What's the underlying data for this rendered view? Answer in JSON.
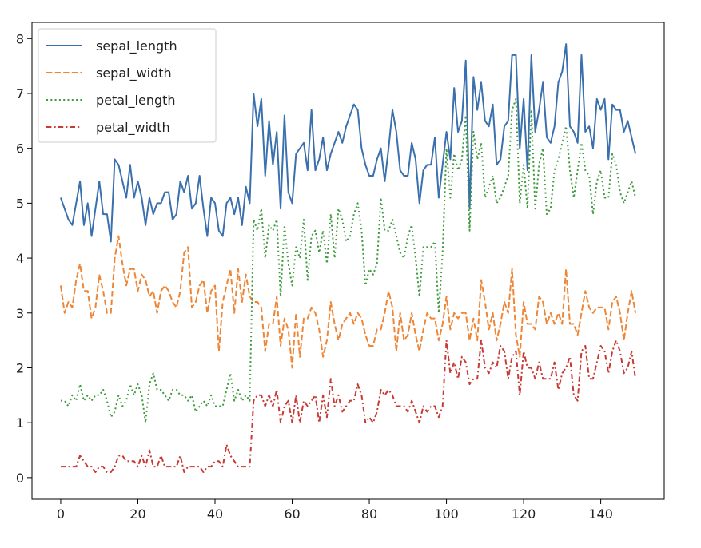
{
  "chart_data": {
    "type": "line",
    "title": "",
    "xlabel": "",
    "ylabel": "",
    "xlim": [
      -7.45,
      156.45
    ],
    "ylim": [
      -0.395,
      8.295
    ],
    "xticks": [
      0,
      20,
      40,
      60,
      80,
      100,
      120,
      140
    ],
    "yticks": [
      0,
      1,
      2,
      3,
      4,
      5,
      6,
      7,
      8
    ],
    "grid": false,
    "legend_position": "top-left",
    "series": [
      {
        "name": "sepal_length",
        "color": "#3a70ad",
        "dash": "solid",
        "x": [
          0,
          1,
          2,
          3,
          4,
          5,
          6,
          7,
          8,
          9,
          10,
          11,
          12,
          13,
          14,
          15,
          16,
          17,
          18,
          19,
          20,
          21,
          22,
          23,
          24,
          25,
          26,
          27,
          28,
          29,
          30,
          31,
          32,
          33,
          34,
          35,
          36,
          37,
          38,
          39,
          40,
          41,
          42,
          43,
          44,
          45,
          46,
          47,
          48,
          49,
          50,
          51,
          52,
          53,
          54,
          55,
          56,
          57,
          58,
          59,
          60,
          61,
          62,
          63,
          64,
          65,
          66,
          67,
          68,
          69,
          70,
          71,
          72,
          73,
          74,
          75,
          76,
          77,
          78,
          79,
          80,
          81,
          82,
          83,
          84,
          85,
          86,
          87,
          88,
          89,
          90,
          91,
          92,
          93,
          94,
          95,
          96,
          97,
          98,
          99,
          100,
          101,
          102,
          103,
          104,
          105,
          106,
          107,
          108,
          109,
          110,
          111,
          112,
          113,
          114,
          115,
          116,
          117,
          118,
          119,
          120,
          121,
          122,
          123,
          124,
          125,
          126,
          127,
          128,
          129,
          130,
          131,
          132,
          133,
          134,
          135,
          136,
          137,
          138,
          139,
          140,
          141,
          142,
          143,
          144,
          145,
          146,
          147,
          148,
          149
        ],
        "values": [
          5.1,
          4.9,
          4.7,
          4.6,
          5.0,
          5.4,
          4.6,
          5.0,
          4.4,
          4.9,
          5.4,
          4.8,
          4.8,
          4.3,
          5.8,
          5.7,
          5.4,
          5.1,
          5.7,
          5.1,
          5.4,
          5.1,
          4.6,
          5.1,
          4.8,
          5.0,
          5.0,
          5.2,
          5.2,
          4.7,
          4.8,
          5.4,
          5.2,
          5.5,
          4.9,
          5.0,
          5.5,
          4.9,
          4.4,
          5.1,
          5.0,
          4.5,
          4.4,
          5.0,
          5.1,
          4.8,
          5.1,
          4.6,
          5.3,
          5.0,
          7.0,
          6.4,
          6.9,
          5.5,
          6.5,
          5.7,
          6.3,
          4.9,
          6.6,
          5.2,
          5.0,
          5.9,
          6.0,
          6.1,
          5.6,
          6.7,
          5.6,
          5.8,
          6.2,
          5.6,
          5.9,
          6.1,
          6.3,
          6.1,
          6.4,
          6.6,
          6.8,
          6.7,
          6.0,
          5.7,
          5.5,
          5.5,
          5.8,
          6.0,
          5.4,
          6.0,
          6.7,
          6.3,
          5.6,
          5.5,
          5.5,
          6.1,
          5.8,
          5.0,
          5.6,
          5.7,
          5.7,
          6.2,
          5.1,
          5.7,
          6.3,
          5.8,
          7.1,
          6.3,
          6.5,
          7.6,
          4.9,
          7.3,
          6.7,
          7.2,
          6.5,
          6.4,
          6.8,
          5.7,
          5.8,
          6.4,
          6.5,
          7.7,
          7.7,
          6.0,
          6.9,
          5.6,
          7.7,
          6.3,
          6.7,
          7.2,
          6.2,
          6.1,
          6.4,
          7.2,
          7.4,
          7.9,
          6.4,
          6.3,
          6.1,
          7.7,
          6.3,
          6.4,
          6.0,
          6.9,
          6.7,
          6.9,
          5.8,
          6.8,
          6.7,
          6.7,
          6.3,
          6.5,
          6.2,
          5.9
        ]
      },
      {
        "name": "sepal_width",
        "color": "#ef8636",
        "dash": "dashed",
        "x": [
          0,
          1,
          2,
          3,
          4,
          5,
          6,
          7,
          8,
          9,
          10,
          11,
          12,
          13,
          14,
          15,
          16,
          17,
          18,
          19,
          20,
          21,
          22,
          23,
          24,
          25,
          26,
          27,
          28,
          29,
          30,
          31,
          32,
          33,
          34,
          35,
          36,
          37,
          38,
          39,
          40,
          41,
          42,
          43,
          44,
          45,
          46,
          47,
          48,
          49,
          50,
          51,
          52,
          53,
          54,
          55,
          56,
          57,
          58,
          59,
          60,
          61,
          62,
          63,
          64,
          65,
          66,
          67,
          68,
          69,
          70,
          71,
          72,
          73,
          74,
          75,
          76,
          77,
          78,
          79,
          80,
          81,
          82,
          83,
          84,
          85,
          86,
          87,
          88,
          89,
          90,
          91,
          92,
          93,
          94,
          95,
          96,
          97,
          98,
          99,
          100,
          101,
          102,
          103,
          104,
          105,
          106,
          107,
          108,
          109,
          110,
          111,
          112,
          113,
          114,
          115,
          116,
          117,
          118,
          119,
          120,
          121,
          122,
          123,
          124,
          125,
          126,
          127,
          128,
          129,
          130,
          131,
          132,
          133,
          134,
          135,
          136,
          137,
          138,
          139,
          140,
          141,
          142,
          143,
          144,
          145,
          146,
          147,
          148,
          149
        ],
        "values": [
          3.5,
          3.0,
          3.2,
          3.1,
          3.6,
          3.9,
          3.4,
          3.4,
          2.9,
          3.1,
          3.7,
          3.4,
          3.0,
          3.0,
          4.0,
          4.4,
          3.9,
          3.5,
          3.8,
          3.8,
          3.4,
          3.7,
          3.6,
          3.3,
          3.4,
          3.0,
          3.4,
          3.5,
          3.4,
          3.2,
          3.1,
          3.4,
          4.1,
          4.2,
          3.1,
          3.2,
          3.5,
          3.6,
          3.0,
          3.4,
          3.5,
          2.3,
          3.2,
          3.5,
          3.8,
          3.0,
          3.8,
          3.2,
          3.7,
          3.3,
          3.2,
          3.2,
          3.1,
          2.3,
          2.8,
          2.8,
          3.3,
          2.4,
          2.9,
          2.7,
          2.0,
          3.0,
          2.2,
          2.9,
          2.9,
          3.1,
          3.0,
          2.7,
          2.2,
          2.5,
          3.2,
          2.8,
          2.5,
          2.8,
          2.9,
          3.0,
          2.8,
          3.0,
          2.9,
          2.6,
          2.4,
          2.4,
          2.7,
          2.7,
          3.0,
          3.4,
          3.1,
          2.3,
          3.0,
          2.5,
          2.6,
          3.0,
          2.6,
          2.3,
          2.7,
          3.0,
          2.9,
          2.9,
          2.5,
          2.8,
          3.3,
          2.7,
          3.0,
          2.9,
          3.0,
          3.0,
          2.5,
          2.9,
          2.5,
          3.6,
          3.2,
          2.7,
          3.0,
          2.5,
          2.8,
          3.2,
          3.0,
          3.8,
          2.6,
          2.2,
          3.2,
          2.8,
          2.8,
          2.7,
          3.3,
          3.2,
          2.8,
          3.0,
          2.8,
          3.0,
          2.8,
          3.8,
          2.8,
          2.8,
          2.6,
          3.0,
          3.4,
          3.1,
          3.0,
          3.1,
          3.1,
          3.1,
          2.7,
          3.2,
          3.3,
          3.0,
          2.5,
          3.0,
          3.4,
          3.0
        ]
      },
      {
        "name": "petal_length",
        "color": "#3d9a3d",
        "dash": "dotted",
        "x": [
          0,
          1,
          2,
          3,
          4,
          5,
          6,
          7,
          8,
          9,
          10,
          11,
          12,
          13,
          14,
          15,
          16,
          17,
          18,
          19,
          20,
          21,
          22,
          23,
          24,
          25,
          26,
          27,
          28,
          29,
          30,
          31,
          32,
          33,
          34,
          35,
          36,
          37,
          38,
          39,
          40,
          41,
          42,
          43,
          44,
          45,
          46,
          47,
          48,
          49,
          50,
          51,
          52,
          53,
          54,
          55,
          56,
          57,
          58,
          59,
          60,
          61,
          62,
          63,
          64,
          65,
          66,
          67,
          68,
          69,
          70,
          71,
          72,
          73,
          74,
          75,
          76,
          77,
          78,
          79,
          80,
          81,
          82,
          83,
          84,
          85,
          86,
          87,
          88,
          89,
          90,
          91,
          92,
          93,
          94,
          95,
          96,
          97,
          98,
          99,
          100,
          101,
          102,
          103,
          104,
          105,
          106,
          107,
          108,
          109,
          110,
          111,
          112,
          113,
          114,
          115,
          116,
          117,
          118,
          119,
          120,
          121,
          122,
          123,
          124,
          125,
          126,
          127,
          128,
          129,
          130,
          131,
          132,
          133,
          134,
          135,
          136,
          137,
          138,
          139,
          140,
          141,
          142,
          143,
          144,
          145,
          146,
          147,
          148,
          149
        ],
        "values": [
          1.4,
          1.4,
          1.3,
          1.5,
          1.4,
          1.7,
          1.4,
          1.5,
          1.4,
          1.5,
          1.5,
          1.6,
          1.4,
          1.1,
          1.2,
          1.5,
          1.3,
          1.4,
          1.7,
          1.5,
          1.7,
          1.5,
          1.0,
          1.7,
          1.9,
          1.6,
          1.6,
          1.5,
          1.4,
          1.6,
          1.6,
          1.5,
          1.5,
          1.4,
          1.5,
          1.2,
          1.3,
          1.4,
          1.3,
          1.5,
          1.3,
          1.3,
          1.3,
          1.6,
          1.9,
          1.4,
          1.6,
          1.4,
          1.5,
          1.4,
          4.7,
          4.5,
          4.9,
          4.0,
          4.6,
          4.5,
          4.7,
          3.3,
          4.6,
          3.9,
          3.5,
          4.2,
          4.0,
          4.7,
          3.6,
          4.4,
          4.5,
          4.1,
          4.5,
          3.9,
          4.8,
          4.0,
          4.9,
          4.7,
          4.3,
          4.4,
          4.8,
          5.0,
          4.5,
          3.5,
          3.8,
          3.7,
          3.9,
          5.1,
          4.5,
          4.5,
          4.7,
          4.4,
          4.1,
          4.0,
          4.4,
          4.6,
          4.0,
          3.3,
          4.2,
          4.2,
          4.2,
          4.3,
          3.0,
          4.1,
          6.0,
          5.1,
          5.9,
          5.6,
          5.8,
          6.6,
          4.5,
          6.3,
          5.8,
          6.1,
          5.1,
          5.3,
          5.5,
          5.0,
          5.1,
          5.3,
          5.5,
          6.7,
          6.9,
          5.0,
          5.7,
          4.9,
          6.7,
          4.9,
          5.7,
          6.0,
          4.8,
          4.9,
          5.6,
          5.8,
          6.1,
          6.4,
          5.6,
          5.1,
          5.6,
          6.1,
          5.6,
          5.5,
          4.8,
          5.4,
          5.6,
          5.1,
          5.1,
          5.9,
          5.7,
          5.2,
          5.0,
          5.2,
          5.4,
          5.1
        ]
      },
      {
        "name": "petal_width",
        "color": "#c83a33",
        "dash": "dashdot",
        "x": [
          0,
          1,
          2,
          3,
          4,
          5,
          6,
          7,
          8,
          9,
          10,
          11,
          12,
          13,
          14,
          15,
          16,
          17,
          18,
          19,
          20,
          21,
          22,
          23,
          24,
          25,
          26,
          27,
          28,
          29,
          30,
          31,
          32,
          33,
          34,
          35,
          36,
          37,
          38,
          39,
          40,
          41,
          42,
          43,
          44,
          45,
          46,
          47,
          48,
          49,
          50,
          51,
          52,
          53,
          54,
          55,
          56,
          57,
          58,
          59,
          60,
          61,
          62,
          63,
          64,
          65,
          66,
          67,
          68,
          69,
          70,
          71,
          72,
          73,
          74,
          75,
          76,
          77,
          78,
          79,
          80,
          81,
          82,
          83,
          84,
          85,
          86,
          87,
          88,
          89,
          90,
          91,
          92,
          93,
          94,
          95,
          96,
          97,
          98,
          99,
          100,
          101,
          102,
          103,
          104,
          105,
          106,
          107,
          108,
          109,
          110,
          111,
          112,
          113,
          114,
          115,
          116,
          117,
          118,
          119,
          120,
          121,
          122,
          123,
          124,
          125,
          126,
          127,
          128,
          129,
          130,
          131,
          132,
          133,
          134,
          135,
          136,
          137,
          138,
          139,
          140,
          141,
          142,
          143,
          144,
          145,
          146,
          147,
          148,
          149
        ],
        "values": [
          0.2,
          0.2,
          0.2,
          0.2,
          0.2,
          0.4,
          0.3,
          0.2,
          0.2,
          0.1,
          0.2,
          0.2,
          0.1,
          0.1,
          0.2,
          0.4,
          0.4,
          0.3,
          0.3,
          0.3,
          0.2,
          0.4,
          0.2,
          0.5,
          0.2,
          0.2,
          0.4,
          0.2,
          0.2,
          0.2,
          0.2,
          0.4,
          0.1,
          0.2,
          0.2,
          0.2,
          0.2,
          0.1,
          0.2,
          0.2,
          0.3,
          0.3,
          0.2,
          0.6,
          0.4,
          0.3,
          0.2,
          0.2,
          0.2,
          0.2,
          1.4,
          1.5,
          1.5,
          1.3,
          1.5,
          1.3,
          1.6,
          1.0,
          1.3,
          1.4,
          1.0,
          1.5,
          1.0,
          1.4,
          1.3,
          1.4,
          1.5,
          1.0,
          1.5,
          1.1,
          1.8,
          1.3,
          1.5,
          1.2,
          1.3,
          1.4,
          1.4,
          1.7,
          1.5,
          1.0,
          1.1,
          1.0,
          1.2,
          1.6,
          1.5,
          1.6,
          1.5,
          1.3,
          1.3,
          1.3,
          1.2,
          1.4,
          1.2,
          1.0,
          1.3,
          1.2,
          1.3,
          1.3,
          1.1,
          1.3,
          2.5,
          1.9,
          2.1,
          1.8,
          2.2,
          2.1,
          1.7,
          1.8,
          1.8,
          2.5,
          2.0,
          1.9,
          2.1,
          2.0,
          2.4,
          2.3,
          1.8,
          2.2,
          2.3,
          1.5,
          2.3,
          2.0,
          2.0,
          1.8,
          2.1,
          1.8,
          1.8,
          1.8,
          2.1,
          1.6,
          1.9,
          2.0,
          2.2,
          1.5,
          1.4,
          2.3,
          2.4,
          1.8,
          1.8,
          2.1,
          2.4,
          2.3,
          1.9,
          2.3,
          2.5,
          2.3,
          1.9,
          2.0,
          2.3,
          1.8
        ]
      }
    ]
  }
}
